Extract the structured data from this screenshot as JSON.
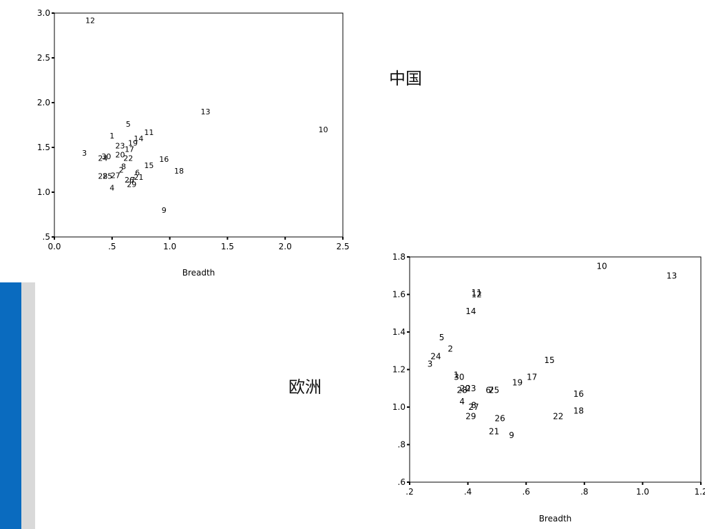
{
  "labels": {
    "china": "中国",
    "europe": "欧洲"
  },
  "chart_data": [
    {
      "type": "scatter",
      "title": "",
      "xlabel": "Breadth",
      "ylabel": "",
      "xlim": [
        0.0,
        2.5
      ],
      "ylim": [
        0.5,
        3.0
      ],
      "grid": false,
      "x_ticks": [
        {
          "v": 0.0,
          "label": "0.0"
        },
        {
          "v": 0.5,
          "label": ".5"
        },
        {
          "v": 1.0,
          "label": "1.0"
        },
        {
          "v": 1.5,
          "label": "1.5"
        },
        {
          "v": 2.0,
          "label": "2.0"
        },
        {
          "v": 2.5,
          "label": "2.5"
        }
      ],
      "y_ticks": [
        {
          "v": 0.5,
          "label": ".5"
        },
        {
          "v": 1.0,
          "label": "1.0"
        },
        {
          "v": 1.5,
          "label": "1.5"
        },
        {
          "v": 2.0,
          "label": "2.0"
        },
        {
          "v": 2.5,
          "label": "2.5"
        },
        {
          "v": 3.0,
          "label": "3.0"
        }
      ],
      "points": [
        {
          "label": "12",
          "x": 0.31,
          "y": 2.92
        },
        {
          "label": "13",
          "x": 1.31,
          "y": 1.9
        },
        {
          "label": "10",
          "x": 2.33,
          "y": 1.7
        },
        {
          "label": "5",
          "x": 0.64,
          "y": 1.76
        },
        {
          "label": "11",
          "x": 0.82,
          "y": 1.67
        },
        {
          "label": "1",
          "x": 0.5,
          "y": 1.63
        },
        {
          "label": "14",
          "x": 0.73,
          "y": 1.6
        },
        {
          "label": "19",
          "x": 0.68,
          "y": 1.55
        },
        {
          "label": "23",
          "x": 0.57,
          "y": 1.52
        },
        {
          "label": "17",
          "x": 0.65,
          "y": 1.48
        },
        {
          "label": "3",
          "x": 0.26,
          "y": 1.44
        },
        {
          "label": "20",
          "x": 0.57,
          "y": 1.42
        },
        {
          "label": "30",
          "x": 0.45,
          "y": 1.4
        },
        {
          "label": "24",
          "x": 0.42,
          "y": 1.38
        },
        {
          "label": "22",
          "x": 0.64,
          "y": 1.38
        },
        {
          "label": "16",
          "x": 0.95,
          "y": 1.37
        },
        {
          "label": "15",
          "x": 0.82,
          "y": 1.3
        },
        {
          "label": "8",
          "x": 0.6,
          "y": 1.29
        },
        {
          "label": "18",
          "x": 1.08,
          "y": 1.24
        },
        {
          "label": "2",
          "x": 0.58,
          "y": 1.25
        },
        {
          "label": "6",
          "x": 0.72,
          "y": 1.22
        },
        {
          "label": "28",
          "x": 0.42,
          "y": 1.18
        },
        {
          "label": "25",
          "x": 0.46,
          "y": 1.18
        },
        {
          "label": "27",
          "x": 0.53,
          "y": 1.19
        },
        {
          "label": "21",
          "x": 0.73,
          "y": 1.17
        },
        {
          "label": "26",
          "x": 0.65,
          "y": 1.14
        },
        {
          "label": "7",
          "x": 0.68,
          "y": 1.14
        },
        {
          "label": "29",
          "x": 0.67,
          "y": 1.09
        },
        {
          "label": "4",
          "x": 0.5,
          "y": 1.05
        },
        {
          "label": "9",
          "x": 0.95,
          "y": 0.8
        }
      ]
    },
    {
      "type": "scatter",
      "title": "",
      "xlabel": "Breadth",
      "ylabel": "",
      "xlim": [
        0.2,
        1.2
      ],
      "ylim": [
        0.6,
        1.8
      ],
      "grid": false,
      "x_ticks": [
        {
          "v": 0.2,
          "label": ".2"
        },
        {
          "v": 0.4,
          "label": ".4"
        },
        {
          "v": 0.6,
          "label": ".6"
        },
        {
          "v": 0.8,
          "label": ".8"
        },
        {
          "v": 1.0,
          "label": "1.0"
        },
        {
          "v": 1.2,
          "label": "1.2"
        }
      ],
      "y_ticks": [
        {
          "v": 0.6,
          "label": ".6"
        },
        {
          "v": 0.8,
          "label": ".8"
        },
        {
          "v": 1.0,
          "label": "1.0"
        },
        {
          "v": 1.2,
          "label": "1.2"
        },
        {
          "v": 1.4,
          "label": "1.4"
        },
        {
          "v": 1.6,
          "label": "1.6"
        },
        {
          "v": 1.8,
          "label": "1.8"
        }
      ],
      "points": [
        {
          "label": "10",
          "x": 0.86,
          "y": 1.75
        },
        {
          "label": "13",
          "x": 1.1,
          "y": 1.7
        },
        {
          "label": "11",
          "x": 0.43,
          "y": 1.61
        },
        {
          "label": "12",
          "x": 0.43,
          "y": 1.6
        },
        {
          "label": "14",
          "x": 0.41,
          "y": 1.51
        },
        {
          "label": "5",
          "x": 0.31,
          "y": 1.37
        },
        {
          "label": "2",
          "x": 0.34,
          "y": 1.31
        },
        {
          "label": "24",
          "x": 0.29,
          "y": 1.27
        },
        {
          "label": "15",
          "x": 0.68,
          "y": 1.25
        },
        {
          "label": "3",
          "x": 0.27,
          "y": 1.23
        },
        {
          "label": "1",
          "x": 0.36,
          "y": 1.17
        },
        {
          "label": "30",
          "x": 0.37,
          "y": 1.16
        },
        {
          "label": "17",
          "x": 0.62,
          "y": 1.16
        },
        {
          "label": "19",
          "x": 0.57,
          "y": 1.13
        },
        {
          "label": "23",
          "x": 0.41,
          "y": 1.1
        },
        {
          "label": "20",
          "x": 0.39,
          "y": 1.1
        },
        {
          "label": "28",
          "x": 0.38,
          "y": 1.09
        },
        {
          "label": "6",
          "x": 0.47,
          "y": 1.09
        },
        {
          "label": "7",
          "x": 0.48,
          "y": 1.09
        },
        {
          "label": "25",
          "x": 0.49,
          "y": 1.09
        },
        {
          "label": "16",
          "x": 0.78,
          "y": 1.07
        },
        {
          "label": "4",
          "x": 0.38,
          "y": 1.03
        },
        {
          "label": "8",
          "x": 0.42,
          "y": 1.01
        },
        {
          "label": "27",
          "x": 0.42,
          "y": 1.0
        },
        {
          "label": "18",
          "x": 0.78,
          "y": 0.98
        },
        {
          "label": "29",
          "x": 0.41,
          "y": 0.95
        },
        {
          "label": "22",
          "x": 0.71,
          "y": 0.95
        },
        {
          "label": "26",
          "x": 0.51,
          "y": 0.94
        },
        {
          "label": "21",
          "x": 0.49,
          "y": 0.87
        },
        {
          "label": "9",
          "x": 0.55,
          "y": 0.85
        }
      ]
    }
  ]
}
